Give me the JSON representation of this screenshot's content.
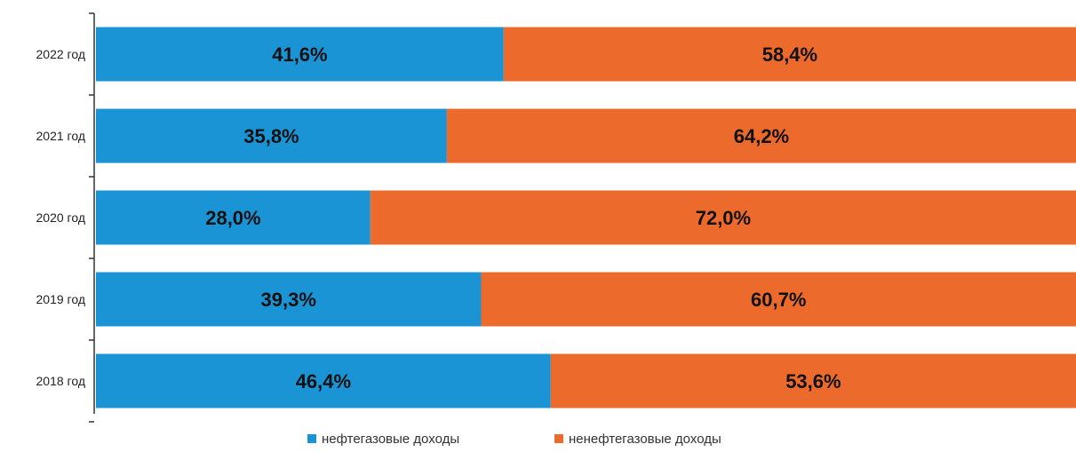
{
  "chart_data": {
    "type": "bar",
    "orientation": "horizontal",
    "stacked": true,
    "normalized": true,
    "categories": [
      "2022 год",
      "2021 год",
      "2020 год",
      "2019 год",
      "2018 год"
    ],
    "series": [
      {
        "name": "нефтегазовые доходы",
        "color": "#1A94D4",
        "values": [
          41.6,
          35.8,
          28.0,
          39.3,
          46.4
        ],
        "labels": [
          "41,6%",
          "35,8%",
          "28,0%",
          "39,3%",
          "46,4%"
        ]
      },
      {
        "name": "ненефтегазовые доходы",
        "color": "#EB6A2C",
        "values": [
          58.4,
          64.2,
          72.0,
          60.7,
          53.6
        ],
        "labels": [
          "58,4%",
          "64,2%",
          "72,0%",
          "60,7%",
          "53,6%"
        ]
      }
    ],
    "xlim": [
      0,
      100
    ],
    "grid": false,
    "legend_position": "bottom"
  }
}
